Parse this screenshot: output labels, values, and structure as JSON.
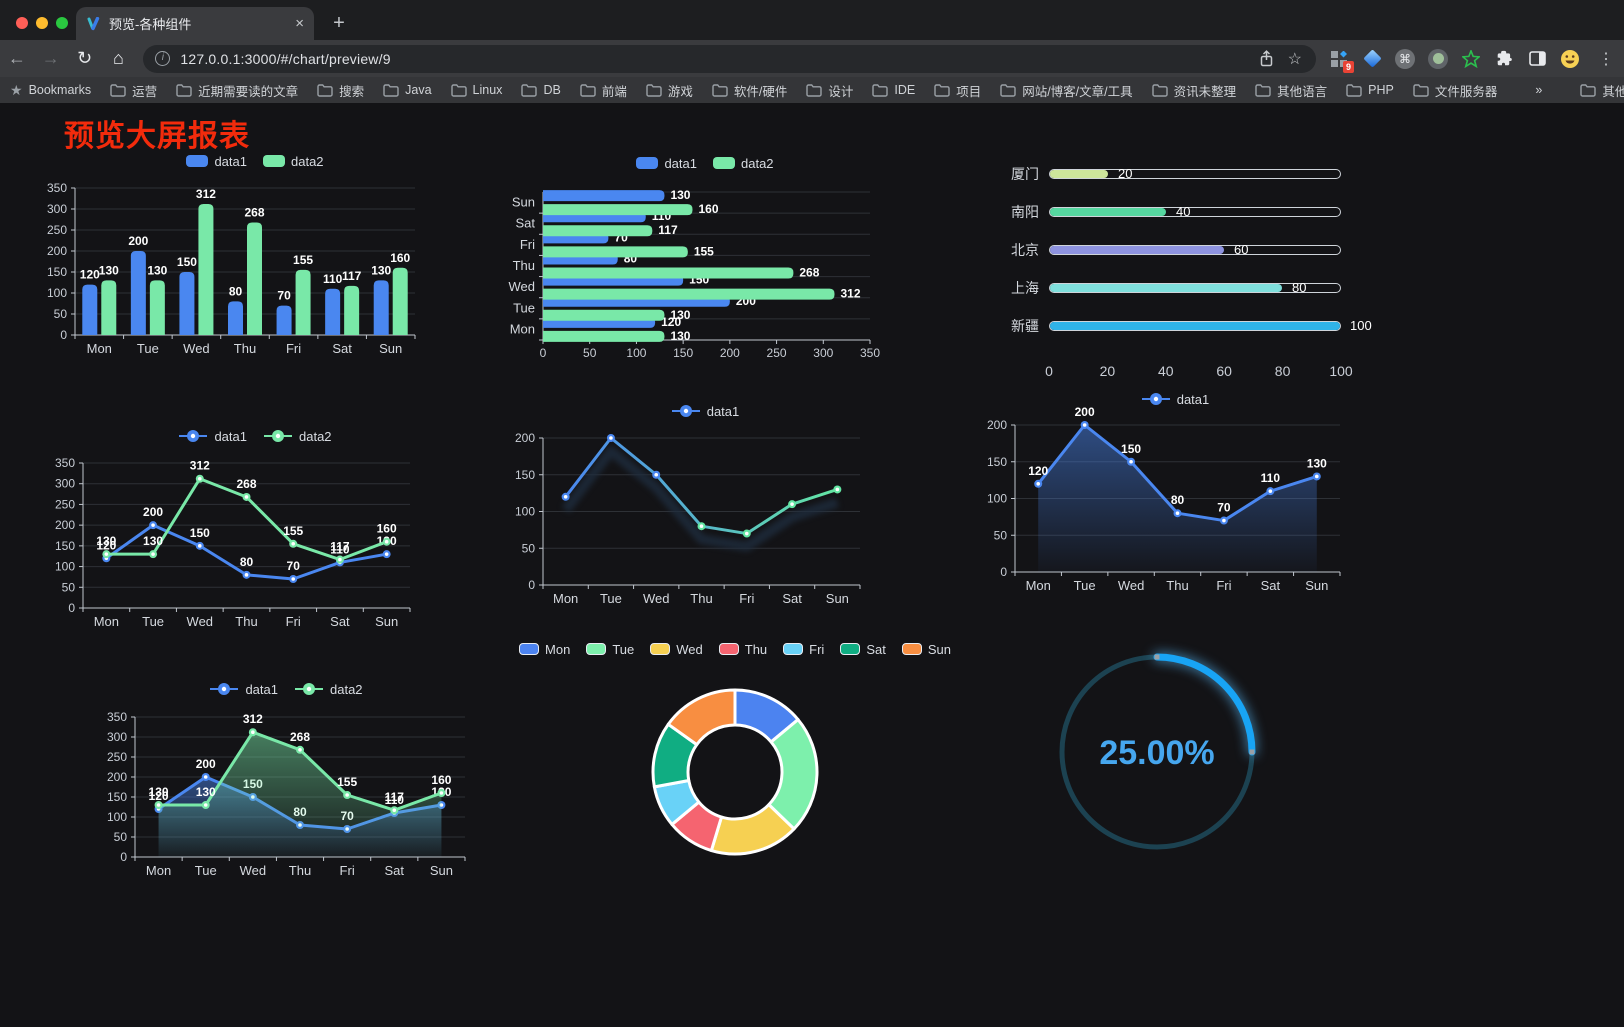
{
  "browser": {
    "tab_title": "预览-各种组件",
    "url_display": "127.0.0.1:3000/#/chart/preview/9",
    "bookmarks_label": "Bookmarks",
    "bookmarks": [
      "运营",
      "近期需要读的文章",
      "搜索",
      "Java",
      "Linux",
      "DB",
      "前端",
      "游戏",
      "软件/硬件",
      "设计",
      "IDE",
      "项目",
      "网站/博客/文章/工具",
      "资讯未整理",
      "其他语言",
      "PHP",
      "文件服务器"
    ],
    "overflow": "»",
    "other_bookmarks": "其他书签",
    "extension_badge": "9",
    "icons": {
      "back": "←",
      "forward": "→",
      "reload": "↻",
      "home": "⌂",
      "star": "☆",
      "menu": "⋮",
      "close": "×",
      "new_tab": "+",
      "info": "i",
      "cmd": "⌘"
    }
  },
  "page": {
    "title": "预览大屏报表",
    "title_color": "#f22b0c",
    "background": "#131316"
  },
  "chart_data": [
    {
      "id": "bar1",
      "type": "bar",
      "legend_position": "top",
      "grid": true,
      "value_labels": true,
      "categories": [
        "Mon",
        "Tue",
        "Wed",
        "Thu",
        "Fri",
        "Sat",
        "Sun"
      ],
      "series": [
        {
          "name": "data1",
          "color": "#4a87f0",
          "values": [
            120,
            200,
            150,
            80,
            70,
            110,
            130
          ]
        },
        {
          "name": "data2",
          "color": "#79e8a8",
          "values": [
            130,
            130,
            312,
            268,
            155,
            117,
            160
          ]
        }
      ],
      "ylim": [
        0,
        350
      ],
      "ytick": 50
    },
    {
      "id": "hbar1",
      "type": "bar-horizontal",
      "legend_position": "top",
      "grid": true,
      "value_labels": true,
      "categories": [
        "Mon",
        "Tue",
        "Wed",
        "Thu",
        "Fri",
        "Sat",
        "Sun"
      ],
      "series": [
        {
          "name": "data1",
          "color": "#4a87f0",
          "values": [
            120,
            200,
            150,
            80,
            70,
            110,
            130
          ]
        },
        {
          "name": "data2",
          "color": "#79e8a8",
          "values": [
            130,
            130,
            312,
            268,
            155,
            117,
            160
          ]
        }
      ],
      "xlim": [
        0,
        350
      ],
      "xtick": 50
    },
    {
      "id": "progress1",
      "type": "progress-bars",
      "max": 100,
      "axis_ticks": [
        0,
        20,
        40,
        60,
        80,
        100
      ],
      "items": [
        {
          "label": "厦门",
          "value": 20,
          "color": "#cde59b"
        },
        {
          "label": "南阳",
          "value": 40,
          "color": "#56d7a0"
        },
        {
          "label": "北京",
          "value": 60,
          "color": "#8e93e0"
        },
        {
          "label": "上海",
          "value": 80,
          "color": "#7fdfdc"
        },
        {
          "label": "新疆",
          "value": 100,
          "color": "#2fb3e8"
        }
      ]
    },
    {
      "id": "line1",
      "type": "line",
      "legend_position": "top",
      "grid": true,
      "markers": true,
      "value_labels": true,
      "categories": [
        "Mon",
        "Tue",
        "Wed",
        "Thu",
        "Fri",
        "Sat",
        "Sun"
      ],
      "series": [
        {
          "name": "data1",
          "color": "#4a87f0",
          "values": [
            120,
            200,
            150,
            80,
            70,
            110,
            130
          ]
        },
        {
          "name": "data2",
          "color": "#79e8a8",
          "values": [
            130,
            130,
            312,
            268,
            155,
            117,
            160
          ]
        }
      ],
      "ylim": [
        0,
        350
      ],
      "ytick": 50
    },
    {
      "id": "gline1",
      "type": "line",
      "legend_position": "top",
      "grid": true,
      "markers": true,
      "value_labels": false,
      "shadow": true,
      "categories": [
        "Mon",
        "Tue",
        "Wed",
        "Thu",
        "Fri",
        "Sat",
        "Sun"
      ],
      "series": [
        {
          "name": "data1",
          "gradient": [
            "#4a87f0",
            "#63e6a3"
          ],
          "values": [
            120,
            200,
            150,
            80,
            70,
            110,
            130
          ]
        }
      ],
      "ylim": [
        0,
        200
      ],
      "ytick": 50
    },
    {
      "id": "area1",
      "type": "line",
      "legend_position": "top",
      "grid": true,
      "markers": true,
      "value_labels": true,
      "categories": [
        "Mon",
        "Tue",
        "Wed",
        "Thu",
        "Fri",
        "Sat",
        "Sun"
      ],
      "series": [
        {
          "name": "data1",
          "color": "#4a87f0",
          "area": true,
          "values": [
            120,
            200,
            150,
            80,
            70,
            110,
            130
          ]
        }
      ],
      "ylim": [
        0,
        200
      ],
      "ytick": 50
    },
    {
      "id": "area2",
      "type": "line",
      "legend_position": "top",
      "grid": true,
      "markers": true,
      "value_labels": true,
      "categories": [
        "Mon",
        "Tue",
        "Wed",
        "Thu",
        "Fri",
        "Sat",
        "Sun"
      ],
      "series": [
        {
          "name": "data1",
          "color": "#4a87f0",
          "area": true,
          "values": [
            120,
            200,
            150,
            80,
            70,
            110,
            130
          ]
        },
        {
          "name": "data2",
          "color": "#79e8a8",
          "area": true,
          "values": [
            130,
            130,
            312,
            268,
            155,
            117,
            160
          ]
        }
      ],
      "ylim": [
        0,
        350
      ],
      "ytick": 50
    },
    {
      "id": "donut1",
      "type": "donut",
      "legend_position": "top",
      "items": [
        {
          "label": "Mon",
          "value": 120,
          "color": "#4c83f0"
        },
        {
          "label": "Tue",
          "value": 200,
          "color": "#7df0ac"
        },
        {
          "label": "Wed",
          "value": 150,
          "color": "#f6d052"
        },
        {
          "label": "Thu",
          "value": 80,
          "color": "#f56470"
        },
        {
          "label": "Fri",
          "value": 70,
          "color": "#69d2f7"
        },
        {
          "label": "Sat",
          "value": 110,
          "color": "#10ad82"
        },
        {
          "label": "Sun",
          "value": 130,
          "color": "#f88e41"
        }
      ]
    },
    {
      "id": "gauge1",
      "type": "gauge",
      "percent": 25,
      "value_label": "25.00%",
      "arc_color": "#18a4f5",
      "track_color": "#1c4251",
      "text_color": "#46a6ee"
    }
  ]
}
